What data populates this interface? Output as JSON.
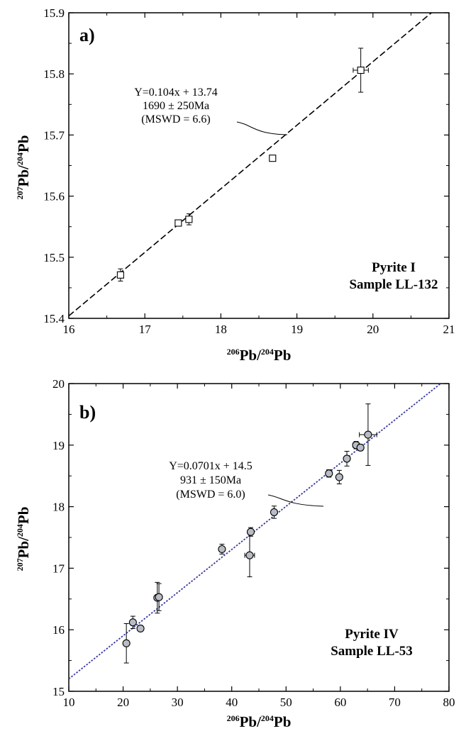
{
  "chart_data": [
    {
      "type": "scatter",
      "panel_label": "a)",
      "xlabel": {
        "sup1": "206",
        "main1": "Pb/",
        "sup2": "204",
        "main2": "Pb"
      },
      "ylabel": {
        "sup1": "207",
        "main1": "Pb/",
        "sup2": "204",
        "main2": "Pb"
      },
      "xlim": [
        16,
        21
      ],
      "ylim": [
        15.4,
        15.9
      ],
      "xticks": [
        "16",
        "17",
        "18",
        "19",
        "20",
        "21"
      ],
      "yticks": [
        "15.4",
        "15.5",
        "15.6",
        "15.7",
        "15.8",
        "15.9"
      ],
      "marker": "square",
      "marker_fill": "#ffffff",
      "line": {
        "slope": 0.104,
        "intercept": 13.74,
        "style": "dashed",
        "color": "#000000"
      },
      "annotation": [
        "Y=0.104x + 13.74",
        "1690 ± 250Ma",
        "(MSWD = 6.6)"
      ],
      "sample_label": [
        "Pyrite I",
        "Sample LL-132"
      ],
      "points": [
        {
          "x": 16.68,
          "y": 15.471,
          "yerr": 0.01,
          "xerr": 0.03
        },
        {
          "x": 17.44,
          "y": 15.556,
          "yerr": 0.004,
          "xerr": 0.02
        },
        {
          "x": 17.58,
          "y": 15.562,
          "yerr": 0.009,
          "xerr": 0.03
        },
        {
          "x": 18.68,
          "y": 15.662,
          "yerr": 0.004,
          "xerr": 0.02
        },
        {
          "x": 19.84,
          "y": 15.806,
          "yerr": 0.036,
          "xerr": 0.1
        }
      ]
    },
    {
      "type": "scatter",
      "panel_label": "b)",
      "xlabel": {
        "sup1": "206",
        "main1": "Pb/",
        "sup2": "204",
        "main2": "Pb"
      },
      "ylabel": {
        "sup1": "207",
        "main1": "Pb/",
        "sup2": "204",
        "main2": "Pb"
      },
      "xlim": [
        10,
        80
      ],
      "ylim": [
        15,
        20
      ],
      "xticks": [
        "10",
        "20",
        "30",
        "40",
        "50",
        "60",
        "70",
        "80"
      ],
      "yticks": [
        "15",
        "16",
        "17",
        "18",
        "19",
        "20"
      ],
      "marker": "circle",
      "marker_fill": "#b8bcc4",
      "line": {
        "slope": 0.0701,
        "intercept": 14.5,
        "style": "dotted",
        "color": "#3a3aa0"
      },
      "annotation": [
        "Y=0.0701x + 14.5",
        "931 ± 150Ma",
        "(MSWD = 6.0)"
      ],
      "sample_label": [
        "Pyrite IV",
        "Sample LL-53"
      ],
      "points": [
        {
          "x": 20.6,
          "y": 15.78,
          "yerr": 0.32,
          "xerr": 0
        },
        {
          "x": 21.8,
          "y": 16.12,
          "yerr": 0.1,
          "xerr": 0
        },
        {
          "x": 23.2,
          "y": 16.02,
          "yerr": 0.04,
          "xerr": 0
        },
        {
          "x": 26.3,
          "y": 16.52,
          "yerr": 0.25,
          "xerr": 0
        },
        {
          "x": 26.6,
          "y": 16.53,
          "yerr": 0.22,
          "xerr": 0
        },
        {
          "x": 38.2,
          "y": 17.31,
          "yerr": 0.08,
          "xerr": 0.5
        },
        {
          "x": 43.3,
          "y": 17.21,
          "yerr": 0.35,
          "xerr": 0.9
        },
        {
          "x": 43.5,
          "y": 17.59,
          "yerr": 0.07,
          "xerr": 0
        },
        {
          "x": 47.8,
          "y": 17.91,
          "yerr": 0.1,
          "xerr": 0
        },
        {
          "x": 57.9,
          "y": 18.54,
          "yerr": 0.06,
          "xerr": 0.5
        },
        {
          "x": 59.8,
          "y": 18.48,
          "yerr": 0.11,
          "xerr": 0
        },
        {
          "x": 61.2,
          "y": 18.78,
          "yerr": 0.12,
          "xerr": 0
        },
        {
          "x": 62.9,
          "y": 19.0,
          "yerr": 0.06,
          "xerr": 0.6
        },
        {
          "x": 63.7,
          "y": 18.96,
          "yerr": 0.05,
          "xerr": 0.5
        },
        {
          "x": 65.1,
          "y": 19.17,
          "yerr": 0.5,
          "xerr": 1.6
        }
      ]
    }
  ]
}
